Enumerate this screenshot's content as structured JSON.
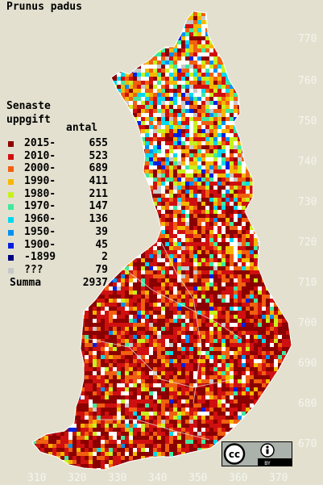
{
  "title": "Prunus padus",
  "legend": {
    "heading_line1": "Senaste",
    "heading_line2": "uppgift",
    "count_heading": "antal",
    "rows": [
      {
        "label": "2015-",
        "count": "655",
        "color": "#8b0000"
      },
      {
        "label": "2010-",
        "count": "523",
        "color": "#d01010"
      },
      {
        "label": "2000-",
        "count": "689",
        "color": "#f06010"
      },
      {
        "label": "1990-",
        "count": "411",
        "color": "#f5b800"
      },
      {
        "label": "1980-",
        "count": "211",
        "color": "#c8f020"
      },
      {
        "label": "1970-",
        "count": "147",
        "color": "#40e8a0"
      },
      {
        "label": "1960-",
        "count": "136",
        "color": "#00d8f0"
      },
      {
        "label": "1950-",
        "count": "39",
        "color": "#0090f0"
      },
      {
        "label": "1900-",
        "count": "45",
        "color": "#0020e0"
      },
      {
        "label": "-1899",
        "count": "2",
        "color": "#000080"
      },
      {
        "label": "???",
        "count": "79",
        "color": "#c8c8c8"
      }
    ],
    "sum_label": "Summa",
    "sum_count": "2937"
  },
  "axes": {
    "y_ticks": [
      "770",
      "760",
      "750",
      "740",
      "730",
      "720",
      "710",
      "700",
      "690",
      "680",
      "670"
    ],
    "x_ticks": [
      "310",
      "320",
      "330",
      "340",
      "350",
      "360",
      "370"
    ]
  },
  "license_badge": {
    "cc": "cc",
    "by": "BY"
  }
}
